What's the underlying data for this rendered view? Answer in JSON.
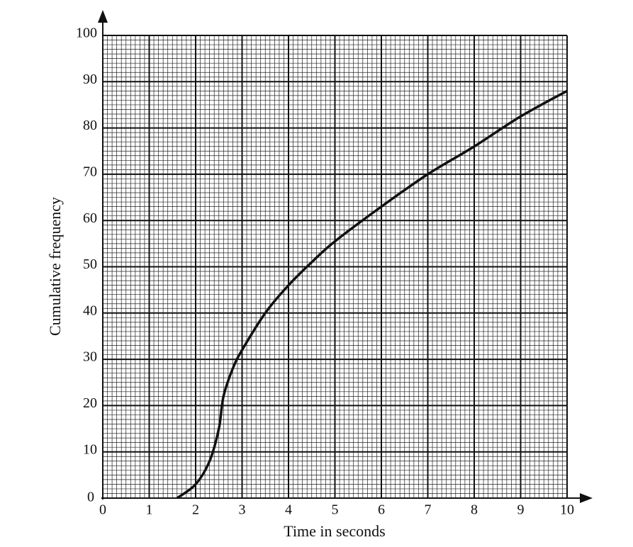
{
  "chart_data": {
    "type": "line",
    "x_label": "Time in seconds",
    "y_label": "Cumulative frequency",
    "x": [
      1.6,
      2.0,
      2.3,
      2.5,
      2.6,
      2.8,
      3.0,
      3.5,
      4.0,
      4.5,
      5.0,
      6.0,
      7.0,
      8.0,
      9.0,
      10.0
    ],
    "values": [
      0,
      3,
      8,
      15,
      22,
      28,
      32,
      40,
      46,
      51,
      55.5,
      63,
      70,
      76,
      82.5,
      88
    ],
    "color": "#111111",
    "xlim": [
      0,
      10
    ],
    "xticks": [
      0,
      1,
      2,
      3,
      4,
      5,
      6,
      7,
      8,
      9,
      10
    ],
    "ylim": [
      0,
      100
    ],
    "yticks": [
      0,
      10,
      20,
      30,
      40,
      50,
      60,
      70,
      80,
      90,
      100
    ],
    "grid": true
  }
}
